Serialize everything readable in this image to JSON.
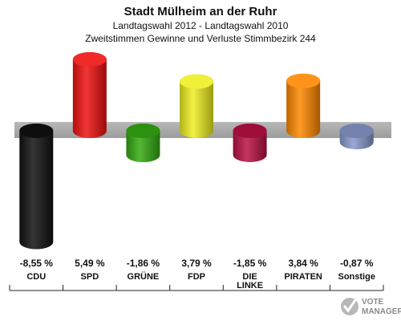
{
  "chart_data": {
    "type": "bar",
    "title": "Stadt Mülheim an der Ruhr",
    "subtitle_1": "Landtagswahl 2012 - Landtagswahl 2010",
    "subtitle_2": "Zweitstimmen Gewinne und Verluste Stimmbezirk 244",
    "categories": [
      "CDU",
      "SPD",
      "GRÜNE",
      "FDP",
      "DIE LINKE",
      "PIRATEN",
      "Sonstige"
    ],
    "category_lines": [
      [
        "CDU"
      ],
      [
        "SPD"
      ],
      [
        "GRÜNE"
      ],
      [
        "FDP"
      ],
      [
        "DIE",
        "LINKE"
      ],
      [
        "PIRATEN"
      ],
      [
        "Sonstige"
      ]
    ],
    "values": [
      -8.55,
      5.49,
      -1.86,
      3.79,
      -1.85,
      3.84,
      -0.87
    ],
    "value_labels": [
      "-8,55 %",
      "5,49 %",
      "-1,86 %",
      "3,79 %",
      "-1,85 %",
      "3,84 %",
      "-0,87 %"
    ],
    "colors": [
      "#111111",
      "#ee1111",
      "#33aa11",
      "#eeee22",
      "#bb1144",
      "#ff8800",
      "#8899cc"
    ],
    "unit": "%",
    "baseline_band_color": "#aaaaaa"
  },
  "logo": {
    "text_line_1": "VOTE",
    "text_line_2": "MANAGER"
  }
}
